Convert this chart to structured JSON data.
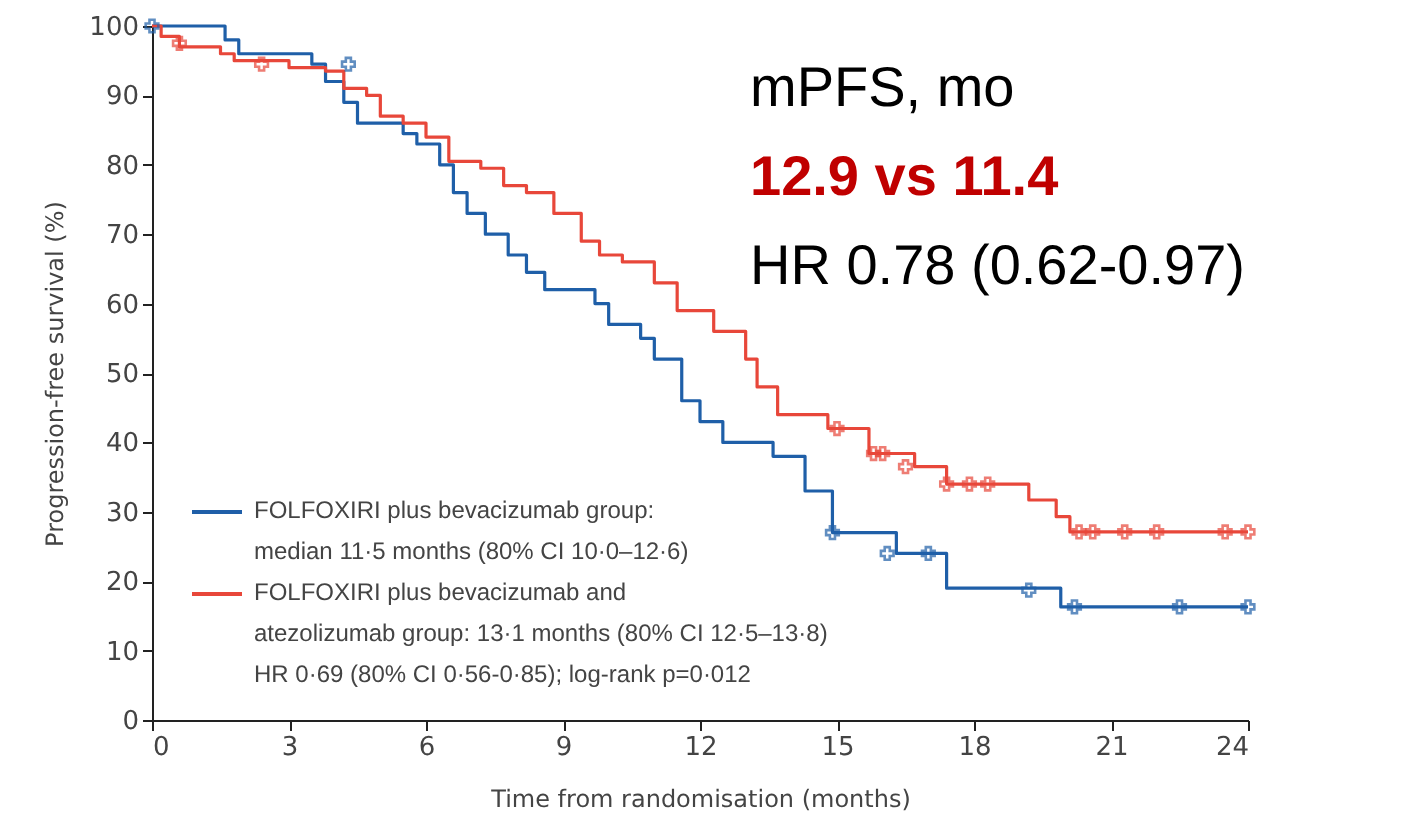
{
  "chart_data": {
    "type": "step",
    "xlabel": "Time from randomisation (months)",
    "ylabel": "Progression-free survival (%)",
    "xlim": [
      0,
      24
    ],
    "xticks": [
      0,
      3,
      6,
      9,
      12,
      15,
      18,
      21,
      24
    ],
    "ylim": [
      0,
      100
    ],
    "yticks": [
      0,
      10,
      20,
      30,
      40,
      50,
      60,
      70,
      80,
      90,
      100
    ],
    "grid": false,
    "legend": "bottom left",
    "line_style": "solid",
    "series": [
      {
        "name": "FOLFOXIRI plus bevacizumab group: median 11·5 months (80% CI 10·0–12·6)",
        "color": "#1f5fa8",
        "x": [
          0,
          1.6,
          1.9,
          3.5,
          3.8,
          4.2,
          4.5,
          5.5,
          5.8,
          6.3,
          6.6,
          6.9,
          7.3,
          7.8,
          8.2,
          8.6,
          9.7,
          10.0,
          10.7,
          11.0,
          11.6,
          12.0,
          12.5,
          13.6,
          14.3,
          14.9,
          16.3,
          17.4,
          19.9,
          24
        ],
        "values": [
          100,
          98,
          96,
          94.5,
          92,
          89,
          86,
          84.5,
          83,
          80,
          76,
          73,
          70,
          67,
          64.5,
          62,
          60,
          57,
          55,
          52,
          46,
          43,
          40,
          38,
          33,
          27,
          24,
          19,
          16.3,
          16.3
        ]
      },
      {
        "name": "FOLFOXIRI plus bevacizumab and atezolizumab group: 13·1 months (80% CI 12·5–13·8)",
        "color": "#e8473a",
        "x": [
          0,
          0.2,
          0.6,
          1.5,
          1.8,
          3.0,
          3.8,
          4.2,
          4.7,
          5.0,
          5.5,
          6.0,
          6.5,
          7.2,
          7.7,
          8.2,
          8.8,
          9.4,
          9.8,
          10.3,
          11.0,
          11.5,
          12.3,
          13.0,
          13.25,
          13.7,
          14.8,
          15.7,
          16.7,
          17.4,
          19.2,
          19.8,
          20.1,
          24
        ],
        "values": [
          100,
          98.5,
          97,
          96,
          95,
          94,
          93.5,
          91,
          90,
          87,
          86,
          84,
          80.5,
          79.5,
          77,
          76,
          73,
          69,
          67,
          66,
          63,
          59,
          56,
          52,
          48,
          44,
          42,
          38.4,
          36.5,
          34,
          31.7,
          29.3,
          27.1,
          27.1
        ]
      },
      {
        "type": "scatter",
        "marker": "cross",
        "color": "#1f5fa8",
        "x": [
          0,
          4.3,
          14.9,
          16.1,
          17.0,
          19.2,
          20.2,
          22.5,
          24
        ],
        "values": [
          100,
          94.5,
          27,
          24,
          24,
          18.7,
          16.3,
          16.3,
          16.3
        ]
      },
      {
        "type": "scatter",
        "marker": "cross",
        "color": "#e8473a",
        "x": [
          0.6,
          2.4,
          15.0,
          15.8,
          16.0,
          16.5,
          17.4,
          17.9,
          18.3,
          20.3,
          20.6,
          21.3,
          22.0,
          23.5,
          24
        ],
        "values": [
          97.5,
          94.5,
          42,
          38.4,
          38.4,
          36.5,
          34,
          34,
          34,
          27.1,
          27.1,
          27.1,
          27.1,
          27.1,
          27.1
        ]
      }
    ],
    "annotations": [
      "mPFS, mo",
      "12.9 vs 11.4",
      "HR 0.78 (0.62-0.97)",
      "HR 0·69 (80% CI 0·56-0·85); log-rank p=0·012"
    ]
  }
}
